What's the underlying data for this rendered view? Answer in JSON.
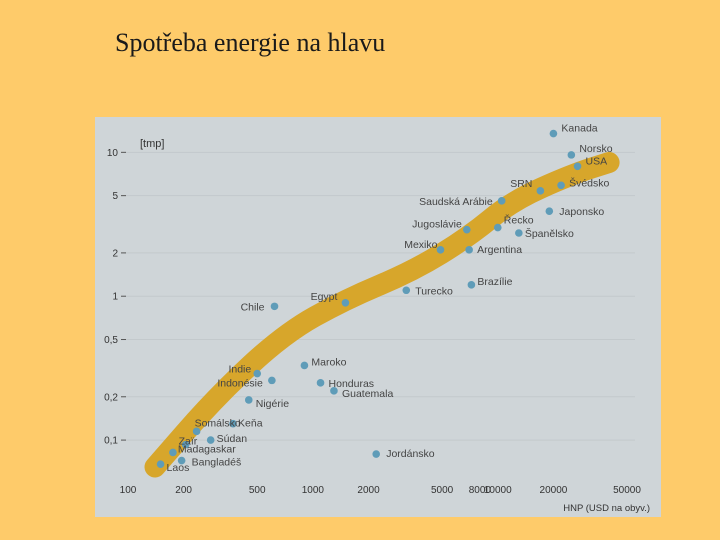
{
  "slide": {
    "title": "Spotřeba energie na hlavu"
  },
  "colors": {
    "background": "#fecb6a",
    "plot_bg": "#cfd5d8",
    "band": "#d7a62b",
    "point": "#5f9cb8"
  },
  "chart_data": {
    "type": "scatter",
    "title": "",
    "ylabel": "[tmp]",
    "xlabel": "HNP (USD na obyv.)",
    "x_scale": "log",
    "y_scale": "log",
    "xlim": [
      100,
      50000
    ],
    "ylim": [
      0.06,
      15
    ],
    "x_ticks": [
      {
        "value": 100,
        "label": "100"
      },
      {
        "value": 200,
        "label": "200"
      },
      {
        "value": 500,
        "label": "500"
      },
      {
        "value": 1000,
        "label": "1000"
      },
      {
        "value": 2000,
        "label": "2000"
      },
      {
        "value": 5000,
        "label": "5000"
      },
      {
        "value": 8000,
        "label": "8000"
      },
      {
        "value": 10000,
        "label": "10000"
      },
      {
        "value": 20000,
        "label": "20000"
      },
      {
        "value": 50000,
        "label": "50000"
      }
    ],
    "y_ticks": [
      {
        "value": 10,
        "label": "10"
      },
      {
        "value": 5,
        "label": "5"
      },
      {
        "value": 2,
        "label": "2"
      },
      {
        "value": 1,
        "label": "1"
      },
      {
        "value": 0.5,
        "label": "0,5"
      },
      {
        "value": 0.2,
        "label": "0,2"
      },
      {
        "value": 0.1,
        "label": "0,1"
      }
    ],
    "trend_band": [
      [
        140,
        0.065
      ],
      [
        300,
        0.2
      ],
      [
        700,
        0.55
      ],
      [
        1500,
        0.95
      ],
      [
        3500,
        1.5
      ],
      [
        7000,
        2.6
      ],
      [
        12000,
        4.6
      ],
      [
        25000,
        7
      ],
      [
        40000,
        8.5
      ]
    ],
    "points": [
      {
        "label": "Kanada",
        "x": 20000,
        "y": 13.5
      },
      {
        "label": "Norsko",
        "x": 25000,
        "y": 9.6
      },
      {
        "label": "USA",
        "x": 27000,
        "y": 8.0
      },
      {
        "label": "Švédsko",
        "x": 22000,
        "y": 5.9
      },
      {
        "label": "SRN",
        "x": 17000,
        "y": 5.4
      },
      {
        "label": "Saudská Arábie",
        "x": 10500,
        "y": 4.6
      },
      {
        "label": "Japonsko",
        "x": 19000,
        "y": 3.9
      },
      {
        "label": "Řecko",
        "x": 10000,
        "y": 3.0
      },
      {
        "label": "Jugoslávie",
        "x": 6800,
        "y": 2.9
      },
      {
        "label": "Španělsko",
        "x": 13000,
        "y": 2.75
      },
      {
        "label": "Mexiko",
        "x": 4900,
        "y": 2.1
      },
      {
        "label": "Argentina",
        "x": 7000,
        "y": 2.1
      },
      {
        "label": "Brazílie",
        "x": 7200,
        "y": 1.2
      },
      {
        "label": "Turecko",
        "x": 3200,
        "y": 1.1
      },
      {
        "label": "Egypt",
        "x": 1500,
        "y": 0.9
      },
      {
        "label": "Chile",
        "x": 620,
        "y": 0.85
      },
      {
        "label": "Maroko",
        "x": 900,
        "y": 0.33
      },
      {
        "label": "Honduras",
        "x": 1100,
        "y": 0.25
      },
      {
        "label": "Guatemala",
        "x": 1300,
        "y": 0.22
      },
      {
        "label": "Indie",
        "x": 500,
        "y": 0.29
      },
      {
        "label": "Indonésie",
        "x": 600,
        "y": 0.26
      },
      {
        "label": "Nigérie",
        "x": 450,
        "y": 0.19
      },
      {
        "label": "Keňa",
        "x": 370,
        "y": 0.13
      },
      {
        "label": "Somálsko",
        "x": 235,
        "y": 0.115
      },
      {
        "label": "Súdan",
        "x": 280,
        "y": 0.1
      },
      {
        "label": "Zaïr",
        "x": 205,
        "y": 0.093
      },
      {
        "label": "Madagaskar",
        "x": 175,
        "y": 0.082
      },
      {
        "label": "Bangladéš",
        "x": 195,
        "y": 0.072
      },
      {
        "label": "Laos",
        "x": 150,
        "y": 0.068
      },
      {
        "label": "Jordánsko",
        "x": 2200,
        "y": 0.08
      }
    ]
  }
}
